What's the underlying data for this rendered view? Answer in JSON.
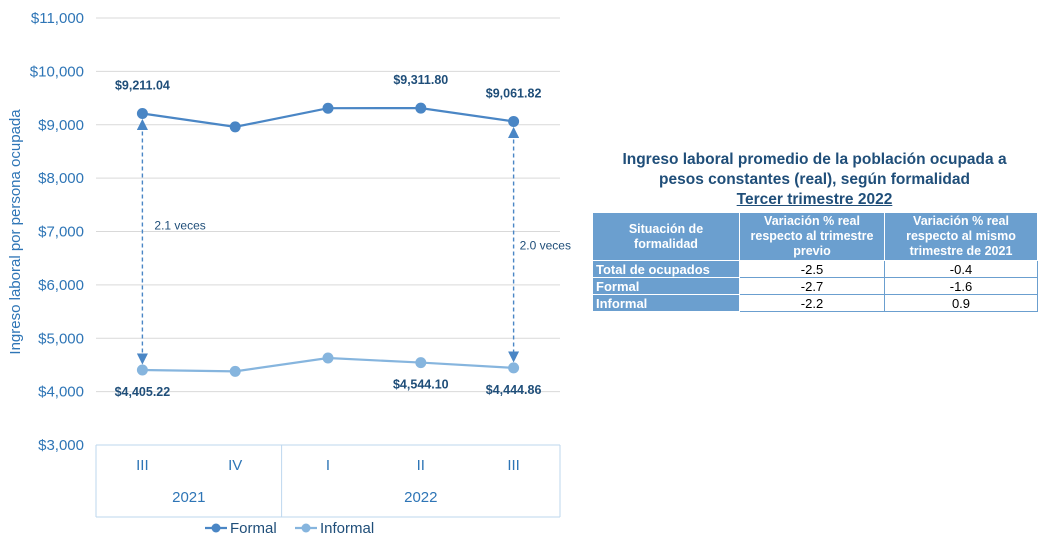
{
  "chart_data": {
    "type": "line",
    "ylabel": "Ingreso laboral por persona ocupada",
    "ylim": [
      3000,
      11000
    ],
    "yticks": [
      "$3,000",
      "$4,000",
      "$5,000",
      "$6,000",
      "$7,000",
      "$8,000",
      "$9,000",
      "$10,000",
      "$11,000"
    ],
    "ytick_values": [
      3000,
      4000,
      5000,
      6000,
      7000,
      8000,
      9000,
      10000,
      11000
    ],
    "categories": [
      "III",
      "IV",
      "I",
      "II",
      "III"
    ],
    "year_groups": [
      {
        "label": "2021",
        "span": [
          0,
          1
        ]
      },
      {
        "label": "2022",
        "span": [
          2,
          4
        ]
      }
    ],
    "series": [
      {
        "name": "Formal",
        "color": "#4A86C5",
        "values": [
          9211.04,
          8960,
          9310,
          9311.8,
          9061.82
        ]
      },
      {
        "name": "Informal",
        "color": "#86B5DE",
        "values": [
          4405.22,
          4380,
          4630,
          4544.1,
          4444.86
        ]
      }
    ],
    "data_labels": [
      {
        "series": 0,
        "index": 0,
        "text": "$9,211.04"
      },
      {
        "series": 0,
        "index": 3,
        "text": "$9,311.80"
      },
      {
        "series": 0,
        "index": 4,
        "text": "$9,061.82"
      },
      {
        "series": 1,
        "index": 0,
        "text": "$4,405.22"
      },
      {
        "series": 1,
        "index": 3,
        "text": "$4,544.10"
      },
      {
        "series": 1,
        "index": 4,
        "text": "$4,444.86"
      }
    ],
    "annotations": [
      {
        "index": 0,
        "text": "2.1 veces"
      },
      {
        "index": 4,
        "text": "2.0 veces"
      }
    ],
    "grid": true,
    "legend_position": "bottom"
  },
  "table": {
    "title_line1": "Ingreso laboral promedio de la población ocupada a",
    "title_line2": "pesos constantes (real), según formalidad",
    "subtitle": "Tercer trimestre 2022",
    "headers": [
      "Situación de formalidad",
      "Variación % real respecto al trimestre previo",
      "Variación % real respecto al mismo trimestre de 2021"
    ],
    "rows": [
      {
        "label": "Total de ocupados",
        "prev": "-2.5",
        "year": "-0.4"
      },
      {
        "label": "Formal",
        "prev": "-2.7",
        "year": "-1.6"
      },
      {
        "label": "Informal",
        "prev": "-2.2",
        "year": "0.9"
      }
    ]
  }
}
